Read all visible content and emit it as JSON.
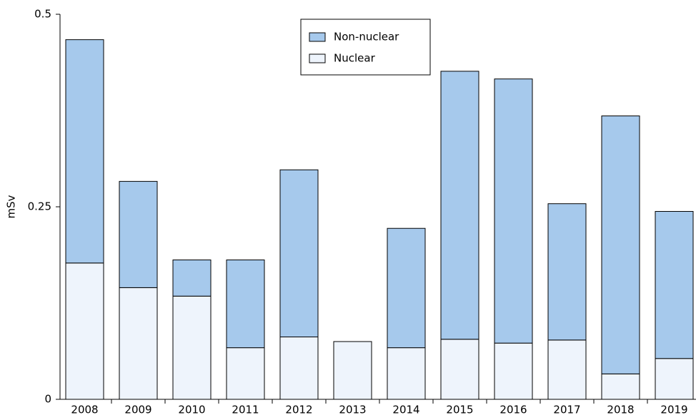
{
  "chart_data": {
    "type": "stacked_bar",
    "ylabel": "mSv",
    "categories": [
      "2008",
      "2009",
      "2010",
      "2011",
      "2012",
      "2013",
      "2014",
      "2015",
      "2016",
      "2017",
      "2018",
      "2019"
    ],
    "series": [
      {
        "name": "Non-nuclear",
        "color": "#a6c9ec",
        "values": [
          0.29,
          0.138,
          0.047,
          0.114,
          0.217,
          0,
          0.155,
          0.348,
          0.343,
          0.177,
          0.335,
          0.191
        ]
      },
      {
        "name": "Nuclear",
        "color": "#eef4fc",
        "values": [
          0.177,
          0.145,
          0.134,
          0.067,
          0.081,
          0.075,
          0.067,
          0.078,
          0.073,
          0.077,
          0.033,
          0.053
        ]
      }
    ],
    "ylim": [
      0,
      0.5
    ],
    "yticks": [
      0,
      0.25,
      0.5
    ],
    "legend": "top-center"
  }
}
